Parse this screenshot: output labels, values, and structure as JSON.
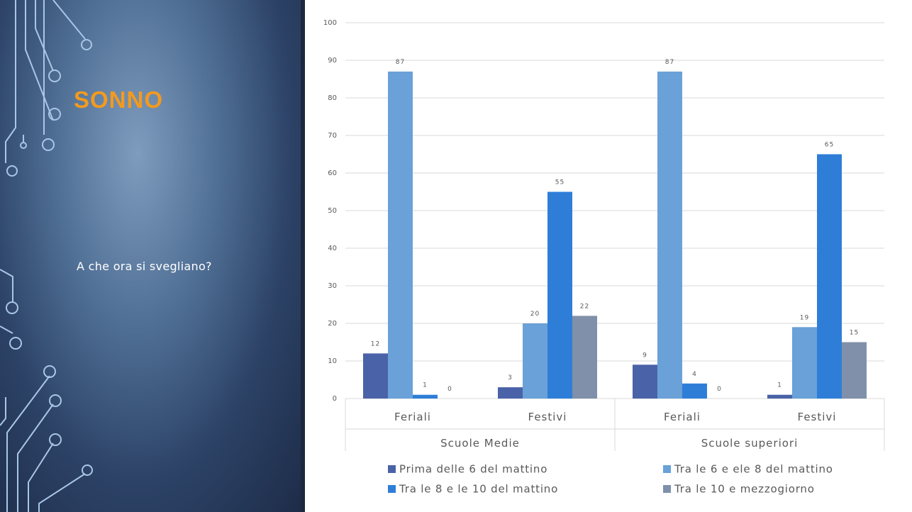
{
  "title": "SONNO",
  "subtitle": "A che ora si svegliano?",
  "chart_data": {
    "type": "bar",
    "categories": [
      "Feriali",
      "Festivi",
      "Feriali",
      "Festivi"
    ],
    "groups": [
      "Scuole Medie",
      "Scuole superiori"
    ],
    "series": [
      {
        "name": "Prima delle 6 del mattino",
        "color": "#4a62a7",
        "values": [
          12,
          3,
          9,
          1
        ]
      },
      {
        "name": "Tra le 6 e ele 8 del mattino",
        "color": "#69a1d8",
        "values": [
          87,
          20,
          87,
          19
        ]
      },
      {
        "name": "Tra le 8 e le 10 del mattino",
        "color": "#2e7ed8",
        "values": [
          1,
          55,
          4,
          65
        ]
      },
      {
        "name": "Tra le 10 e mezzogiorno",
        "color": "#8090aa",
        "values": [
          0,
          22,
          0,
          15
        ]
      }
    ],
    "ylim": [
      0,
      100
    ],
    "yticks": [
      0,
      10,
      20,
      30,
      40,
      50,
      60,
      70,
      80,
      90,
      100
    ],
    "grid": true,
    "legend": "bottom"
  }
}
